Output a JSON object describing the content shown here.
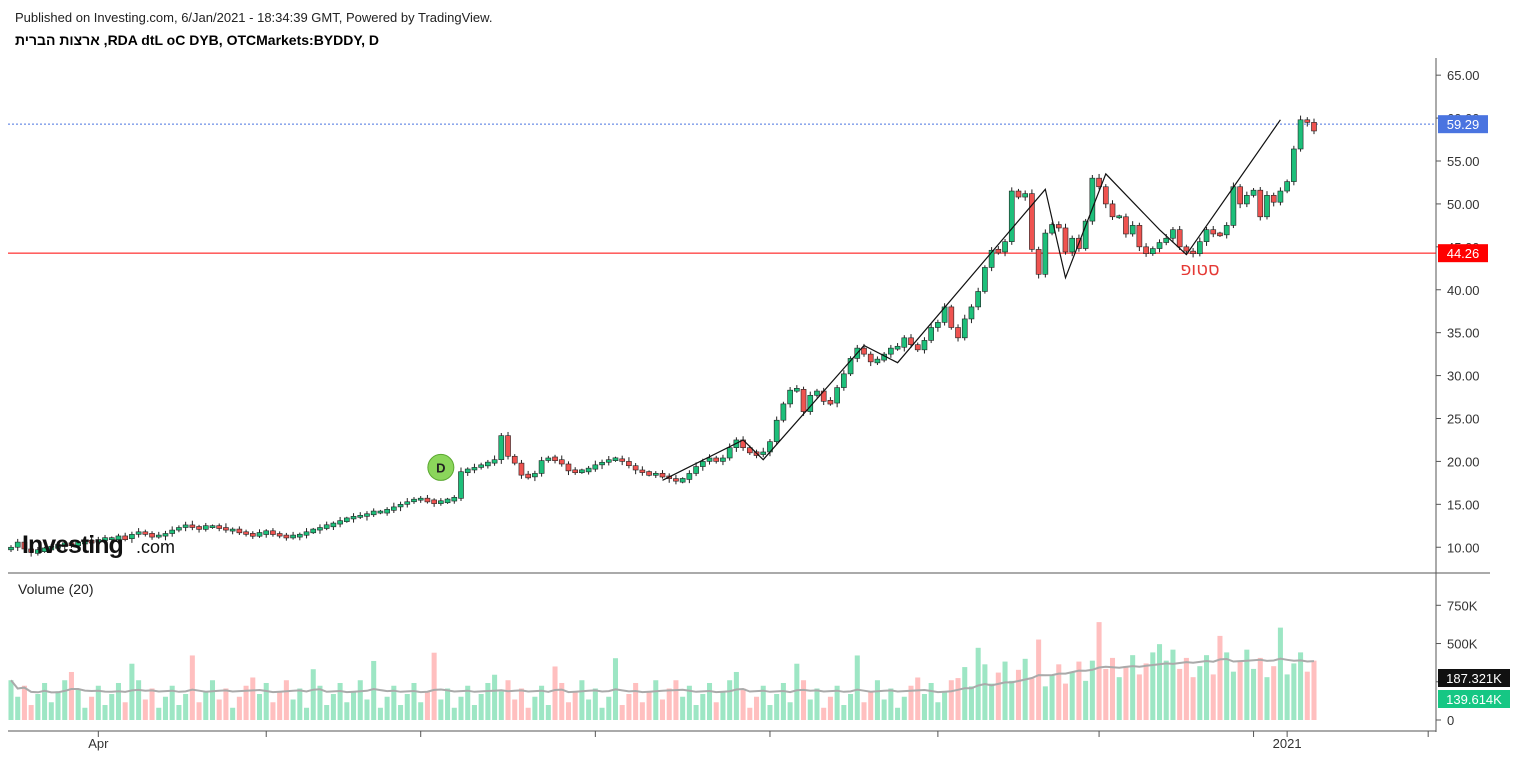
{
  "header": {
    "published": "Published on Investing.com, 6/Jan/2021 - 18:34:39 GMT, Powered by TradingView.",
    "title": "ארצות הברית ,RDA dtL oC DYB, OTCMarkets:BYDDY, D"
  },
  "logo": {
    "brand": "Investing",
    "suffix": ".com"
  },
  "colors": {
    "up": "#26a69a",
    "up_fill": "#1dbf7a",
    "down": "#ef5350",
    "vol_up": "#9de6c4",
    "vol_down": "#ffbfbf",
    "last_price_label": "#4a74e0",
    "stop_line": "#ff0000",
    "volume_label_up": "#16c784",
    "volume_ma": "#aaaaaa"
  },
  "chart_data": {
    "type": "candlestick",
    "symbol": "OTCMarkets:BYDDY",
    "interval": "D",
    "y_ticks": [
      "65.00",
      "60.00",
      "55.00",
      "50.00",
      "45.00",
      "40.00",
      "35.00",
      "30.00",
      "25.00",
      "20.00",
      "15.00",
      "10.00"
    ],
    "ylim": [
      7,
      67
    ],
    "x_labels": [
      {
        "label": "Apr",
        "index": 13
      },
      {
        "label": "2021",
        "index": 190
      }
    ],
    "last_price": "59.29",
    "stop": {
      "value": "44.26",
      "label": "סטופ"
    },
    "dividend_marker": {
      "label": "D",
      "index": 64,
      "price": 19.3
    },
    "close": [
      10.0,
      10.6,
      9.8,
      9.4,
      9.6,
      9.8,
      10.0,
      10.2,
      10.4,
      10.3,
      10.5,
      10.7,
      10.6,
      10.9,
      11.0,
      11.0,
      11.2,
      11.0,
      11.5,
      11.8,
      11.5,
      11.3,
      11.3,
      11.6,
      12.0,
      12.3,
      12.6,
      12.3,
      12.2,
      12.4,
      12.4,
      12.3,
      12.0,
      12.0,
      11.8,
      11.5,
      11.4,
      11.6,
      11.8,
      11.6,
      11.3,
      11.2,
      11.3,
      11.4,
      11.8,
      12.0,
      12.3,
      12.5,
      12.7,
      13.1,
      13.3,
      13.6,
      13.6,
      13.9,
      14.1,
      14.1,
      14.3,
      14.7,
      15.0,
      15.3,
      15.6,
      15.6,
      15.4,
      15.2,
      15.3,
      15.5,
      15.7,
      18.8,
      19.0,
      19.3,
      19.6,
      19.8,
      20.2,
      23.0,
      20.6,
      19.8,
      18.4,
      18.2,
      18.6,
      20.1,
      20.4,
      20.2,
      19.7,
      18.9,
      18.8,
      18.9,
      19.1,
      19.6,
      19.9,
      20.2,
      20.3,
      20.0,
      19.5,
      19.0,
      18.7,
      18.5,
      18.5,
      18.3,
      18.0,
      17.7,
      17.9,
      18.6,
      19.4,
      20.0,
      20.4,
      20.0,
      20.4,
      21.6,
      22.5,
      21.6,
      21.0,
      20.8,
      21.1,
      22.3,
      24.8,
      26.7,
      28.3,
      28.4,
      25.8,
      27.7,
      28.2,
      27.0,
      26.8,
      28.6,
      30.2,
      32.0,
      33.2,
      32.5,
      31.6,
      31.8,
      32.5,
      33.2,
      33.3,
      34.4,
      33.6,
      33.0,
      34.1,
      35.6,
      36.2,
      38.0,
      35.6,
      34.4,
      36.6,
      38.0,
      39.8,
      42.6,
      44.6,
      44.4,
      45.6,
      51.5,
      50.8,
      51.2,
      44.7,
      41.8,
      46.6,
      47.6,
      47.2,
      44.4,
      46.0,
      44.8,
      48.0,
      53.0,
      52.0,
      50.0,
      48.5,
      48.5,
      46.5,
      47.5,
      45.0,
      44.2,
      44.8,
      45.5,
      46.0,
      47.0,
      45.0,
      44.5,
      44.2,
      45.6,
      47.0,
      46.5,
      46.4,
      47.5,
      52.0,
      50.0,
      51.0,
      51.6,
      48.5,
      51.0,
      50.2,
      51.5,
      52.6,
      56.4,
      59.8,
      59.5,
      58.5
    ],
    "volume_ticks": [
      "750K",
      "500K",
      "250K",
      "0"
    ],
    "volume": {
      "label": "Volume (20)",
      "last_volume": "139.614K",
      "last_ma": "187.321K",
      "ylim": [
        0,
        850
      ]
    }
  }
}
